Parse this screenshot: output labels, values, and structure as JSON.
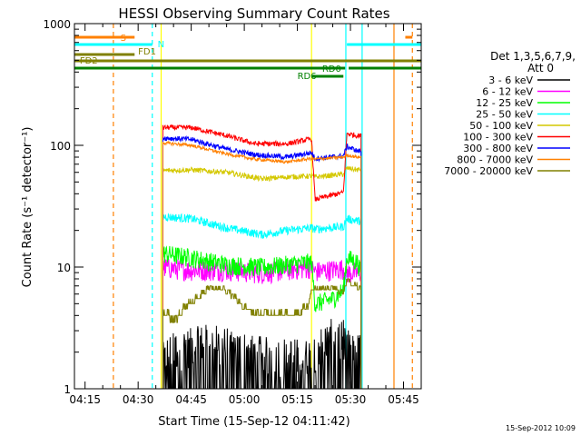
{
  "chart_data": {
    "type": "line",
    "title": "HESSI Observing Summary Count Rates",
    "xlabel": "Start Time (15-Sep-12 04:11:42)",
    "ylabel": "Count Rate (s⁻¹ detector⁻¹)",
    "y_scale": "log",
    "ylim": [
      1,
      1000
    ],
    "xlim_minutes": [
      252,
      350
    ],
    "x_ticks": [
      "04:15",
      "04:30",
      "04:45",
      "05:00",
      "05:15",
      "05:30",
      "05:45"
    ],
    "y_ticks": [
      "1",
      "10",
      "100",
      "1000"
    ],
    "legend_title": "Det 1,3,5,6,7,9,",
    "legend_subtitle": "Att 0",
    "legend_position": "right",
    "timestamp": "15-Sep-2012 10:09",
    "series": [
      {
        "name": "3 - 6 keV",
        "color": "#000000",
        "x": [
          277,
          279,
          290,
          305,
          318,
          324,
          328,
          330,
          333
        ],
        "values": [
          1.6,
          1.9,
          2.3,
          1.8,
          1.7,
          2.5,
          2.5,
          1.9,
          1.9
        ]
      },
      {
        "name": "6 - 12 keV",
        "color": "#ff00ff",
        "x": [
          277,
          285,
          295,
          305,
          312,
          319,
          320,
          328,
          329,
          332,
          333
        ],
        "values": [
          10,
          9.5,
          9.5,
          9.0,
          9.5,
          10,
          9.2,
          9.8,
          9.0,
          9.0,
          9.0
        ]
      },
      {
        "name": "12 - 25 keV",
        "color": "#00ff00",
        "x": [
          277,
          285,
          295,
          305,
          312,
          319,
          320,
          325,
          328,
          329,
          332,
          333
        ],
        "values": [
          13,
          12,
          10.5,
          10,
          10.5,
          11,
          5.0,
          5.5,
          6.5,
          12,
          11,
          9.0
        ]
      },
      {
        "name": "25 - 50 keV",
        "color": "#00ffff",
        "x": [
          277,
          285,
          295,
          305,
          312,
          319,
          320,
          328,
          329,
          332,
          333
        ],
        "values": [
          26,
          25,
          21,
          18.5,
          20,
          21,
          20.5,
          21.5,
          25,
          24,
          24
        ]
      },
      {
        "name": "50 - 100 keV",
        "color": "#d4c800",
        "x": [
          277,
          285,
          295,
          305,
          312,
          319,
          320,
          328,
          329,
          332,
          333
        ],
        "values": [
          62,
          63,
          60,
          53,
          55,
          56,
          55,
          58,
          65,
          63,
          63
        ]
      },
      {
        "name": "100 - 300 keV",
        "color": "#ff0000",
        "x": [
          277,
          285,
          295,
          303,
          312,
          319,
          320,
          328,
          329,
          332,
          333
        ],
        "values": [
          140,
          140,
          120,
          103,
          103,
          113,
          36,
          41,
          125,
          120,
          120
        ]
      },
      {
        "name": "300 - 800 keV",
        "color": "#0000ff",
        "x": [
          277,
          285,
          295,
          303,
          312,
          319,
          320,
          328,
          329,
          332,
          333
        ],
        "values": [
          115,
          112,
          93,
          84,
          80,
          87,
          78,
          82,
          98,
          90,
          90
        ]
      },
      {
        "name": "800 - 7000 keV",
        "color": "#ff8000",
        "x": [
          277,
          285,
          295,
          303,
          312,
          319,
          320,
          328,
          329,
          332,
          333
        ],
        "values": [
          105,
          100,
          85,
          77,
          73,
          78,
          77,
          80,
          83,
          80,
          80
        ]
      },
      {
        "name": "7000 - 20000 keV",
        "color": "#808000",
        "x": [
          277,
          281,
          283,
          287,
          290,
          294,
          297,
          300,
          305,
          312,
          318,
          319,
          328,
          329,
          333
        ],
        "values": [
          3.8,
          3.7,
          4.5,
          5.5,
          6.5,
          6.5,
          5.5,
          4.5,
          3.8,
          3.8,
          4.4,
          6.5,
          6.2,
          7.5,
          6.5
        ]
      }
    ],
    "state_bars": [
      {
        "label": "S",
        "color": "#ff8000",
        "segments": [
          [
            252,
            269
          ],
          [
            345.5,
            347.5
          ]
        ]
      },
      {
        "label": "N",
        "color": "#00ffff",
        "segments": [
          [
            252,
            274
          ],
          [
            329,
            350
          ]
        ]
      },
      {
        "label": "FD1",
        "color": "#808000",
        "segments": [
          [
            252,
            269
          ]
        ]
      },
      {
        "label": "FD2",
        "color": "#808000",
        "segments": [
          [
            252,
            350
          ]
        ]
      },
      {
        "label": "RD0",
        "color": "#008000",
        "segments": [
          [
            252,
            328.5
          ],
          [
            329.5,
            350
          ]
        ]
      },
      {
        "label": "RD6",
        "color": "#008000",
        "segments": [
          [
            319,
            328
          ]
        ]
      }
    ],
    "vertical_markers": [
      {
        "x": 263,
        "color": "#ff8000",
        "style": "dashed"
      },
      {
        "x": 274,
        "color": "#00ffff",
        "style": "dashed"
      },
      {
        "x": 276.5,
        "color": "#ffff00",
        "style": "solid"
      },
      {
        "x": 319,
        "color": "#ffff00",
        "style": "solid"
      },
      {
        "x": 328.7,
        "color": "#00ffff",
        "style": "solid"
      },
      {
        "x": 333.3,
        "color": "#00ffff",
        "style": "solid"
      },
      {
        "x": 342.3,
        "color": "#ff8000",
        "style": "solid"
      },
      {
        "x": 347.5,
        "color": "#ff8000",
        "style": "dashed"
      }
    ]
  }
}
